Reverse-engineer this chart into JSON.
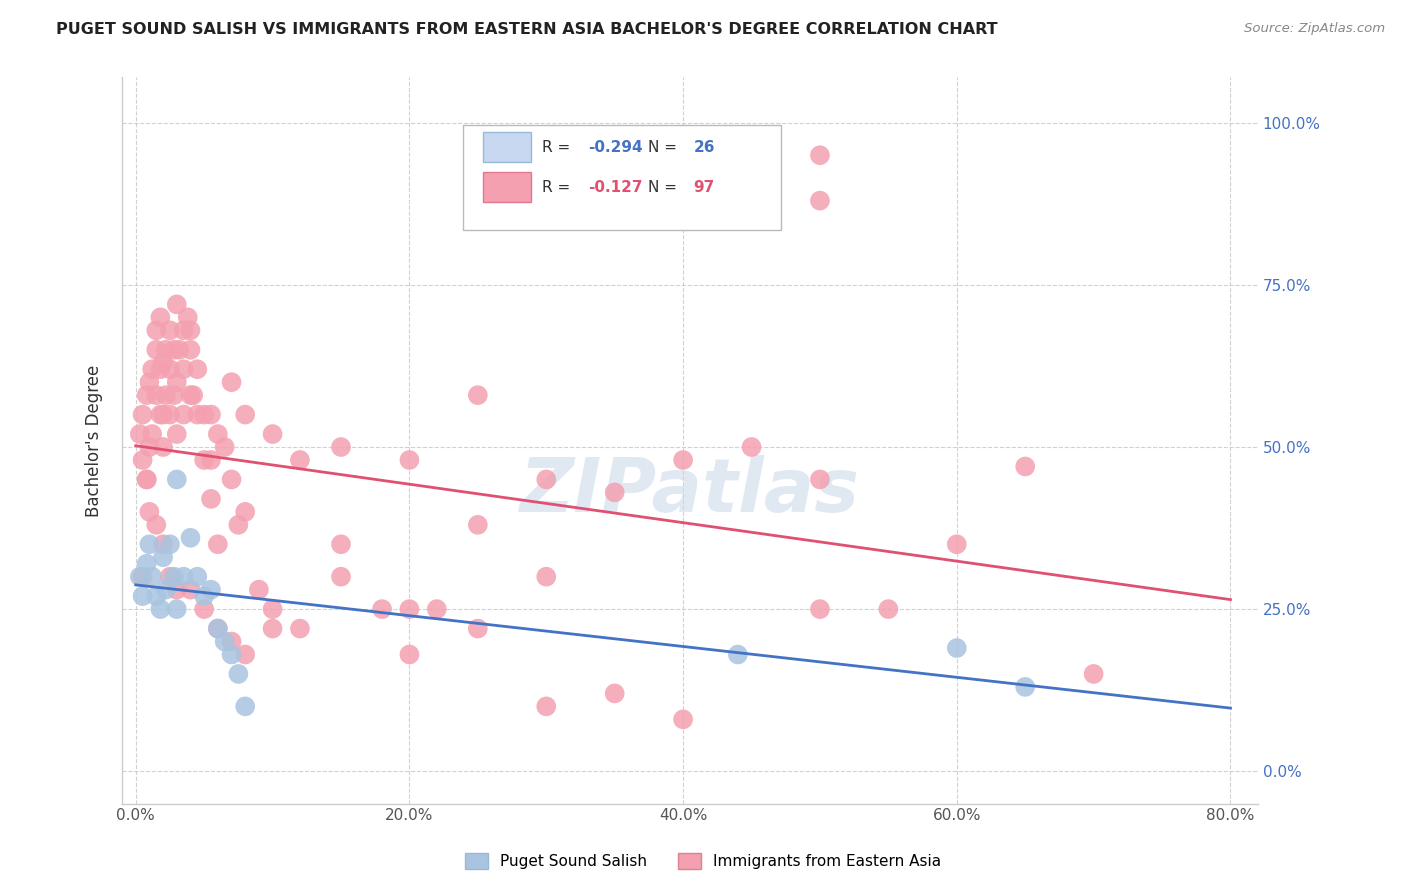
{
  "title": "PUGET SOUND SALISH VS IMMIGRANTS FROM EASTERN ASIA BACHELOR'S DEGREE CORRELATION CHART",
  "source": "Source: ZipAtlas.com",
  "xlabel_tick_vals": [
    0,
    20,
    40,
    60,
    80
  ],
  "ylabel_tick_vals": [
    0,
    25,
    50,
    75,
    100
  ],
  "ylabel": "Bachelor's Degree",
  "legend_label1": "Puget Sound Salish",
  "legend_label2": "Immigrants from Eastern Asia",
  "R1": -0.294,
  "N1": 26,
  "R2": -0.127,
  "N2": 97,
  "color1": "#a8c4e0",
  "color2": "#f4a0b0",
  "line_color1": "#4472c4",
  "line_color2": "#e05070",
  "blue_x": [
    0.3,
    0.5,
    0.8,
    1.0,
    1.2,
    1.5,
    1.8,
    2.0,
    2.2,
    2.5,
    2.8,
    3.0,
    3.5,
    4.0,
    4.5,
    5.0,
    5.5,
    6.0,
    6.5,
    7.0,
    7.5,
    8.0,
    44.0,
    60.0,
    65.0,
    3.0
  ],
  "blue_y": [
    30,
    27,
    32,
    35,
    30,
    27,
    25,
    33,
    28,
    35,
    30,
    45,
    30,
    36,
    30,
    27,
    28,
    22,
    20,
    18,
    15,
    10,
    18,
    19,
    13,
    25
  ],
  "pink_x": [
    0.3,
    0.5,
    0.5,
    0.8,
    0.8,
    1.0,
    1.0,
    1.2,
    1.2,
    1.5,
    1.5,
    1.5,
    1.8,
    1.8,
    1.8,
    2.0,
    2.0,
    2.0,
    2.2,
    2.2,
    2.5,
    2.5,
    2.5,
    2.8,
    2.8,
    3.0,
    3.0,
    3.0,
    3.2,
    3.5,
    3.5,
    3.8,
    4.0,
    4.0,
    4.2,
    4.5,
    4.5,
    5.0,
    5.0,
    5.5,
    5.5,
    6.0,
    6.0,
    6.5,
    7.0,
    7.0,
    7.5,
    8.0,
    8.0,
    9.0,
    10.0,
    10.0,
    12.0,
    12.0,
    15.0,
    15.0,
    18.0,
    20.0,
    20.0,
    22.0,
    25.0,
    25.0,
    30.0,
    30.0,
    35.0,
    35.0,
    40.0,
    40.0,
    45.0,
    50.0,
    50.0,
    55.0,
    60.0,
    65.0,
    70.0,
    3.5,
    4.0,
    5.5,
    10.0,
    15.0,
    20.0,
    25.0,
    30.0,
    0.5,
    0.8,
    1.0,
    1.5,
    2.0,
    2.5,
    3.0,
    4.0,
    5.0,
    6.0,
    7.0,
    8.0,
    50.0,
    50.0
  ],
  "pink_y": [
    52,
    55,
    48,
    58,
    45,
    60,
    50,
    52,
    62,
    65,
    58,
    68,
    62,
    70,
    55,
    55,
    63,
    50,
    58,
    65,
    62,
    55,
    68,
    65,
    58,
    72,
    60,
    52,
    65,
    62,
    55,
    70,
    68,
    58,
    58,
    62,
    55,
    55,
    48,
    55,
    42,
    52,
    35,
    50,
    60,
    45,
    38,
    55,
    40,
    28,
    52,
    25,
    48,
    22,
    50,
    30,
    25,
    48,
    18,
    25,
    58,
    22,
    45,
    30,
    43,
    12,
    48,
    8,
    50,
    45,
    25,
    25,
    35,
    47,
    15,
    68,
    65,
    48,
    22,
    35,
    25,
    38,
    10,
    30,
    45,
    40,
    38,
    35,
    30,
    28,
    28,
    25,
    22,
    20,
    18,
    95,
    88
  ],
  "watermark": "ZIPatlas",
  "watermark_color": "#c8d8e8",
  "background_color": "#ffffff",
  "grid_color": "#cccccc"
}
